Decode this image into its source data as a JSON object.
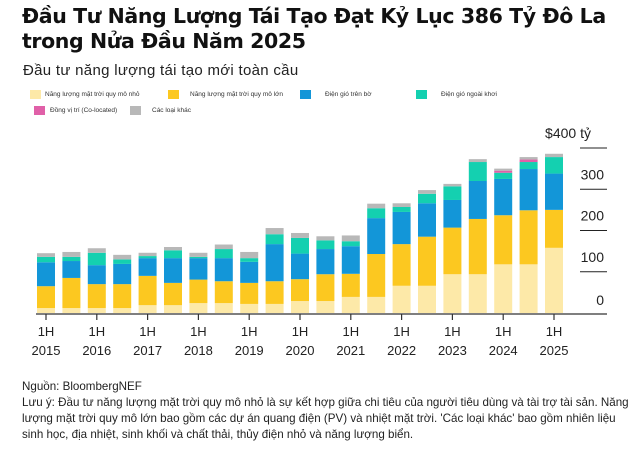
{
  "title": "Đầu Tư Năng Lượng Tái Tạo Đạt Kỷ Lục 386 Tỷ Đô La trong Nửa Đầu Năm 2025",
  "subtitle": "Đầu tư năng lượng tái tạo mới toàn cầu",
  "source": "Nguồn: BloombergNEF",
  "note": "Lưu ý: Đầu tư năng lượng mặt trời quy mô nhỏ là sự kết hợp giữa chi tiêu của người tiêu dùng và tài trợ tài sản. Năng lượng mặt trời quy mô lớn bao gồm các dự án quang điện (PV) và nhiệt mặt trời. 'Các loại khác' bao gồm nhiên liệu sinh học, địa nhiệt, sinh khối và chất thải, thủy điện nhỏ và năng lượng biển.",
  "chart_data": {
    "type": "bar",
    "stacked": true,
    "categories": [
      "2015 1H",
      "2015 2H",
      "2016 1H",
      "2016 2H",
      "2017 1H",
      "2017 2H",
      "2018 1H",
      "2018 2H",
      "2019 1H",
      "2019 2H",
      "2020 1H",
      "2020 2H",
      "2021 1H",
      "2021 2H",
      "2022 1H",
      "2022 2H",
      "2023 1H",
      "2023 2H",
      "2024 1H",
      "2024 2H",
      "2025 1H"
    ],
    "x_tick_labels": [
      {
        "half": "1H",
        "year": "2015"
      },
      {
        "half": "1H",
        "year": "2016"
      },
      {
        "half": "1H",
        "year": "2017"
      },
      {
        "half": "1H",
        "year": "2018"
      },
      {
        "half": "1H",
        "year": "2019"
      },
      {
        "half": "1H",
        "year": "2020"
      },
      {
        "half": "1H",
        "year": "2021"
      },
      {
        "half": "1H",
        "year": "2022"
      },
      {
        "half": "1H",
        "year": "2023"
      },
      {
        "half": "1H",
        "year": "2024"
      },
      {
        "half": "1H",
        "year": "2025"
      }
    ],
    "y_ticks": [
      {
        "value": 0,
        "label": "0"
      },
      {
        "value": 100,
        "label": "100"
      },
      {
        "value": 200,
        "label": "200"
      },
      {
        "value": 300,
        "label": "300"
      },
      {
        "value": 400,
        "label": "$400 tỷ"
      }
    ],
    "ylim": [
      0,
      400
    ],
    "y_axis_side": "right",
    "grid": false,
    "legend_placement": "top-left",
    "series": [
      {
        "name": "Năng lượng mặt trời quy mô nhỏ",
        "color": "#fde9a8",
        "values": [
          12,
          12,
          12,
          12,
          19,
          19,
          24,
          24,
          22,
          22,
          29,
          29,
          39,
          39,
          66,
          66,
          94,
          94,
          118,
          118,
          158
        ]
      },
      {
        "name": "Năng lượng mặt trời quy mô lớn",
        "color": "#fcc820",
        "values": [
          53,
          73,
          58,
          58,
          71,
          54,
          57,
          53,
          51,
          55,
          53,
          65,
          56,
          104,
          101,
          119,
          113,
          134,
          119,
          131,
          92
        ]
      },
      {
        "name": "Điện gió trên bờ",
        "color": "#1396d8",
        "values": [
          58,
          41,
          46,
          49,
          43,
          60,
          52,
          56,
          51,
          90,
          62,
          61,
          67,
          87,
          78,
          81,
          67,
          92,
          88,
          100,
          88
        ]
      },
      {
        "name": "Điện gió ngoài khơi",
        "color": "#14d0b0",
        "values": [
          13,
          10,
          30,
          11,
          5,
          19,
          3,
          22,
          9,
          24,
          38,
          21,
          12,
          24,
          12,
          23,
          33,
          46,
          15,
          17,
          40
        ]
      },
      {
        "name": "Đồng vị trí (Co-located)",
        "color": "#e060a8",
        "values": [
          0,
          0,
          0,
          0,
          0,
          0,
          0,
          0,
          0,
          0,
          0,
          0,
          0,
          0,
          0,
          0,
          0,
          0,
          5,
          6,
          0
        ]
      },
      {
        "name": "Các loại khác",
        "color": "#b8b8b8",
        "values": [
          9,
          12,
          11,
          11,
          8,
          8,
          10,
          11,
          15,
          15,
          12,
          10,
          14,
          11,
          9,
          9,
          6,
          7,
          5,
          6,
          8
        ]
      }
    ]
  }
}
